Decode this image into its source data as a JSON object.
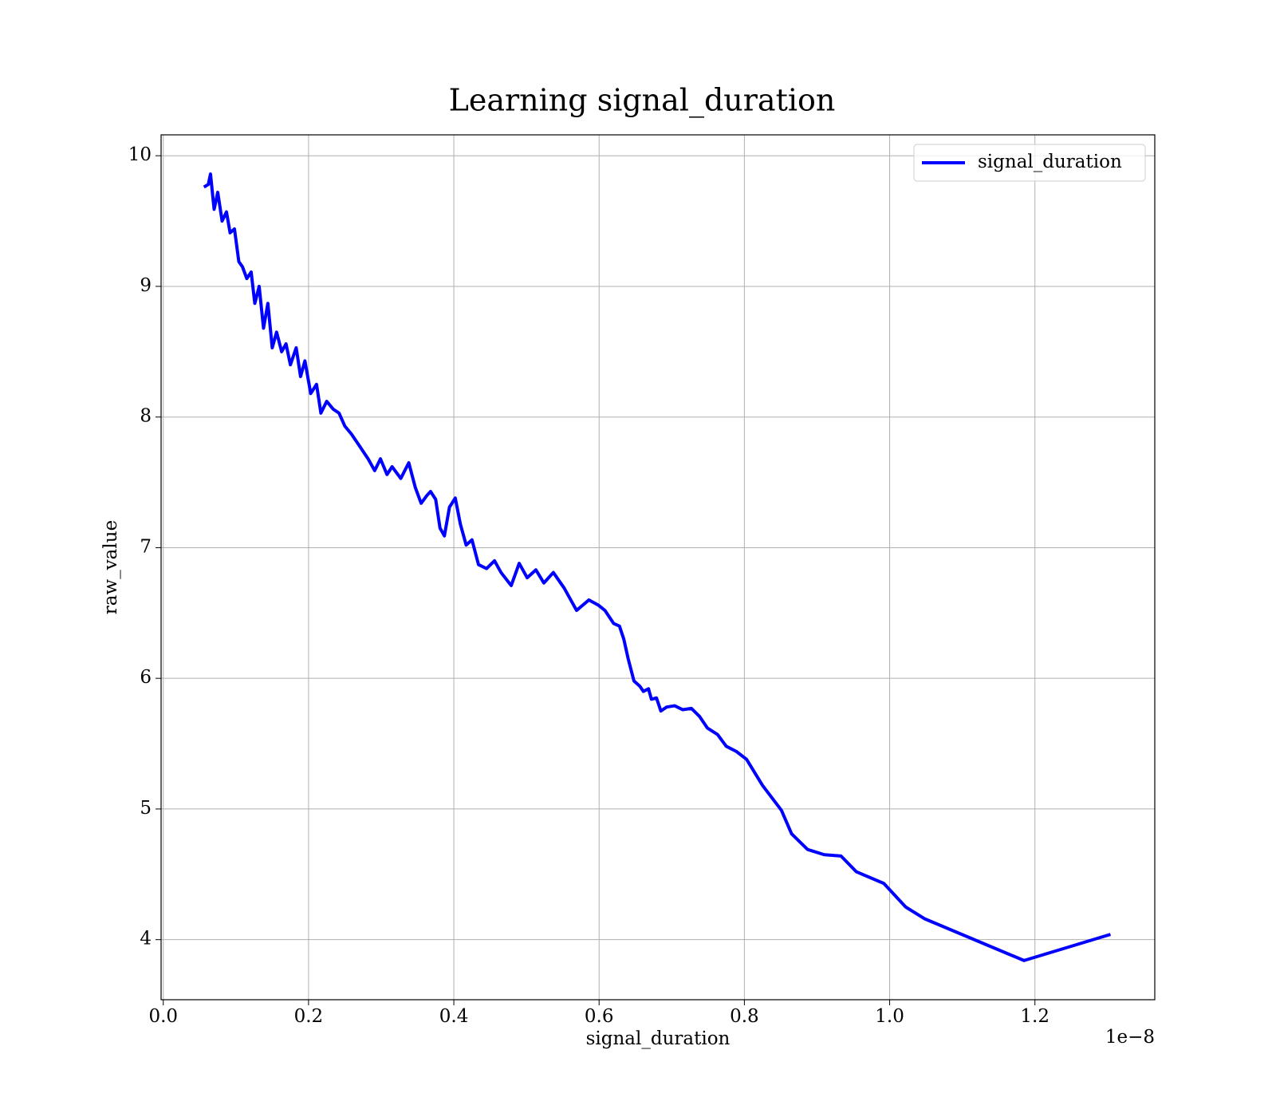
{
  "chart_data": {
    "type": "line",
    "title": "Learning signal_duration",
    "xlabel": "signal_duration",
    "ylabel": "raw_value",
    "x_offset_label": "1e−8",
    "x": [
      0.056,
      0.062,
      0.065,
      0.07,
      0.075,
      0.081,
      0.087,
      0.092,
      0.098,
      0.104,
      0.109,
      0.115,
      0.121,
      0.126,
      0.132,
      0.138,
      0.144,
      0.15,
      0.156,
      0.163,
      0.169,
      0.175,
      0.183,
      0.189,
      0.195,
      0.203,
      0.211,
      0.217,
      0.225,
      0.234,
      0.242,
      0.25,
      0.259,
      0.27,
      0.282,
      0.291,
      0.299,
      0.308,
      0.315,
      0.327,
      0.338,
      0.347,
      0.355,
      0.363,
      0.368,
      0.375,
      0.381,
      0.387,
      0.394,
      0.402,
      0.409,
      0.417,
      0.425,
      0.434,
      0.445,
      0.456,
      0.465,
      0.479,
      0.49,
      0.501,
      0.513,
      0.524,
      0.537,
      0.552,
      0.569,
      0.586,
      0.599,
      0.608,
      0.62,
      0.628,
      0.634,
      0.64,
      0.648,
      0.656,
      0.661,
      0.668,
      0.672,
      0.679,
      0.685,
      0.693,
      0.704,
      0.715,
      0.727,
      0.738,
      0.749,
      0.763,
      0.775,
      0.789,
      0.803,
      0.825,
      0.851,
      0.865,
      0.887,
      0.91,
      0.933,
      0.954,
      0.992,
      1.022,
      1.048,
      1.185,
      1.304
    ],
    "series": [
      {
        "name": "signal_duration",
        "color": "#0000ff",
        "values": [
          9.76,
          9.78,
          9.86,
          9.59,
          9.72,
          9.5,
          9.57,
          9.41,
          9.44,
          9.19,
          9.15,
          9.06,
          9.11,
          8.87,
          9.0,
          8.68,
          8.87,
          8.53,
          8.65,
          8.5,
          8.56,
          8.4,
          8.53,
          8.31,
          8.43,
          8.18,
          8.25,
          8.03,
          8.12,
          8.06,
          8.03,
          7.93,
          7.87,
          7.78,
          7.68,
          7.59,
          7.68,
          7.56,
          7.62,
          7.53,
          7.65,
          7.46,
          7.34,
          7.4,
          7.43,
          7.37,
          7.15,
          7.09,
          7.31,
          7.38,
          7.18,
          7.02,
          7.06,
          6.87,
          6.84,
          6.9,
          6.81,
          6.71,
          6.88,
          6.77,
          6.83,
          6.73,
          6.81,
          6.69,
          6.52,
          6.6,
          6.56,
          6.52,
          6.42,
          6.4,
          6.3,
          6.15,
          5.98,
          5.94,
          5.9,
          5.92,
          5.84,
          5.85,
          5.75,
          5.78,
          5.79,
          5.76,
          5.77,
          5.71,
          5.62,
          5.57,
          5.48,
          5.44,
          5.38,
          5.18,
          4.99,
          4.81,
          4.69,
          4.65,
          4.64,
          4.52,
          4.43,
          4.25,
          4.16,
          3.84,
          4.04
        ]
      }
    ],
    "xlim": [
      -0.003,
      1.365
    ],
    "ylim": [
      3.54,
      10.16
    ],
    "xticks": [
      {
        "value": 0,
        "label": "0.0"
      },
      0.2,
      0.4,
      0.6,
      0.8,
      {
        "value": 1,
        "label": "1.0"
      },
      1.2
    ],
    "yticks": [
      4,
      5,
      6,
      7,
      8,
      9,
      10
    ],
    "grid": true,
    "legend": "upper right"
  }
}
